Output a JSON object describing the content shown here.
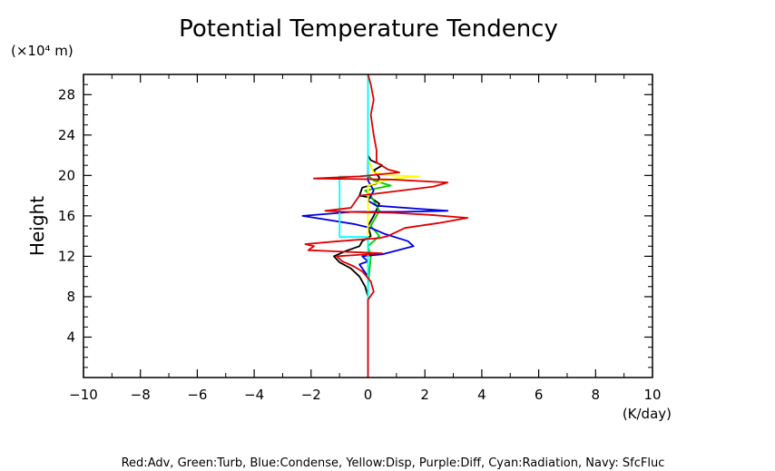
{
  "chart_data": {
    "type": "line",
    "title": "Potential Temperature Tendency",
    "ylabel": "Height",
    "yunit": "(×10⁴ m)",
    "xunit": "(K/day)",
    "legend_text": "Red:Adv, Green:Turb, Blue:Condense, Yellow:Disp, Purple:Diff, Cyan:Radiation, Navy: SfcFluc",
    "legend_placement": "bottom",
    "xlim": [
      -10,
      10
    ],
    "ylim": [
      0,
      30
    ],
    "xticks": [
      -10,
      -8,
      -6,
      -4,
      -2,
      0,
      2,
      4,
      6,
      8,
      10
    ],
    "xtick_labels": [
      "−10",
      "−8",
      "−6",
      "−4",
      "−2",
      "0",
      "2",
      "4",
      "6",
      "8",
      "10"
    ],
    "yticks": [
      4,
      8,
      12,
      16,
      20,
      24,
      28
    ],
    "ytick_labels": [
      "4",
      "8",
      "12",
      "16",
      "20",
      "24",
      "28"
    ],
    "grid": false,
    "series": [
      {
        "color": "#000000",
        "points": [
          [
            0,
            0
          ],
          [
            0,
            8
          ],
          [
            -0.1,
            9
          ],
          [
            -0.3,
            10
          ],
          [
            -0.6,
            10.8
          ],
          [
            -1.0,
            11.4
          ],
          [
            -1.2,
            12.0
          ],
          [
            -0.8,
            12.5
          ],
          [
            -0.3,
            13.0
          ],
          [
            -0.2,
            13.5
          ],
          [
            0.1,
            14.0
          ],
          [
            0,
            15
          ],
          [
            0.2,
            16
          ],
          [
            0.4,
            17.2
          ],
          [
            0.1,
            17.8
          ],
          [
            -0.3,
            18.0
          ],
          [
            -0.2,
            18.8
          ],
          [
            0.3,
            19.2
          ],
          [
            0.4,
            19.8
          ],
          [
            0.2,
            20.5
          ],
          [
            0.5,
            21.0
          ],
          [
            0.1,
            21.5
          ],
          [
            0,
            22
          ],
          [
            0,
            30
          ]
        ]
      },
      {
        "color": "#00cc00",
        "points": [
          [
            0,
            0
          ],
          [
            0,
            9
          ],
          [
            0.1,
            12
          ],
          [
            0,
            13
          ],
          [
            0.4,
            14
          ],
          [
            0.1,
            15
          ],
          [
            0.4,
            16.5
          ],
          [
            0.1,
            18
          ],
          [
            -0.1,
            18.5
          ],
          [
            0.8,
            19.0
          ],
          [
            0.2,
            19.5
          ],
          [
            0,
            20
          ],
          [
            0,
            30
          ]
        ]
      },
      {
        "color": "#0000dd",
        "points": [
          [
            0,
            0
          ],
          [
            0,
            10
          ],
          [
            -0.3,
            11.2
          ],
          [
            0,
            11.5
          ],
          [
            -0.2,
            12.0
          ],
          [
            0.5,
            12.2
          ],
          [
            1.6,
            13.0
          ],
          [
            1.4,
            13.5
          ],
          [
            0.6,
            14.2
          ],
          [
            0.1,
            14.8
          ],
          [
            -0.5,
            15.2
          ],
          [
            -2.3,
            16.0
          ],
          [
            -0.5,
            16.4
          ],
          [
            1.2,
            16.4
          ],
          [
            2.8,
            16.5
          ],
          [
            1.8,
            16.7
          ],
          [
            0.3,
            17.0
          ],
          [
            0,
            17.5
          ],
          [
            0.2,
            18.5
          ],
          [
            0,
            19.5
          ],
          [
            0,
            30
          ]
        ]
      },
      {
        "color": "#ffff00",
        "points": [
          [
            0,
            0
          ],
          [
            0,
            9
          ],
          [
            0,
            19
          ],
          [
            0.6,
            19.5
          ],
          [
            1.3,
            19.8
          ],
          [
            1.8,
            19.9
          ],
          [
            0.8,
            20.0
          ],
          [
            0.2,
            20.3
          ],
          [
            0,
            21.5
          ],
          [
            0,
            30
          ]
        ]
      },
      {
        "color": "#00ffff",
        "points": [
          [
            0,
            0
          ],
          [
            0,
            13.9
          ],
          [
            -1.0,
            13.9
          ],
          [
            -1.0,
            19.9
          ],
          [
            0,
            19.9
          ],
          [
            0,
            30
          ]
        ]
      },
      {
        "color": "#dd0000",
        "points": [
          [
            0,
            0
          ],
          [
            0,
            7.7
          ],
          [
            0.2,
            8.5
          ],
          [
            0.1,
            9.5
          ],
          [
            -0.2,
            10.5
          ],
          [
            -0.5,
            11.0
          ],
          [
            -0.9,
            11.5
          ],
          [
            -1.1,
            12.0
          ],
          [
            0.5,
            12.3
          ],
          [
            -2.1,
            12.6
          ],
          [
            -1.9,
            13.0
          ],
          [
            -2.2,
            13.2
          ],
          [
            -1.0,
            13.5
          ],
          [
            0.4,
            13.8
          ],
          [
            0.7,
            14.0
          ],
          [
            1.3,
            14.8
          ],
          [
            2.5,
            15.3
          ],
          [
            3.5,
            15.8
          ],
          [
            2.2,
            16.1
          ],
          [
            0.9,
            16.3
          ],
          [
            -0.8,
            16.4
          ],
          [
            -1.5,
            16.5
          ],
          [
            -0.6,
            16.8
          ],
          [
            -0.3,
            18.0
          ],
          [
            2.3,
            18.9
          ],
          [
            2.8,
            19.3
          ],
          [
            0.8,
            19.6
          ],
          [
            -1.9,
            19.7
          ],
          [
            -0.3,
            19.9
          ],
          [
            1.1,
            20.3
          ],
          [
            0.7,
            20.6
          ],
          [
            0.3,
            21.3
          ],
          [
            0.3,
            22.5
          ],
          [
            0.2,
            24.0
          ],
          [
            0.1,
            26.0
          ],
          [
            0.2,
            27.5
          ],
          [
            0.1,
            29.0
          ],
          [
            0,
            30
          ]
        ]
      }
    ]
  }
}
